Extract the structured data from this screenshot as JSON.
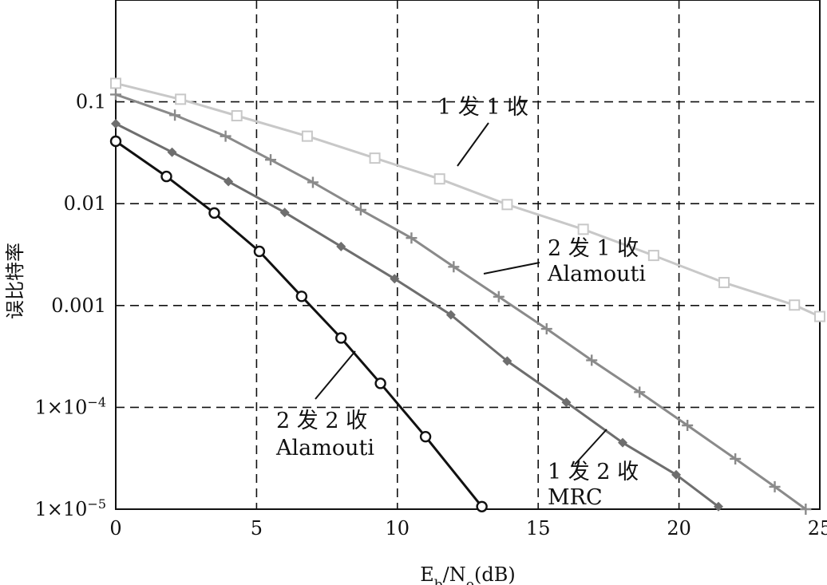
{
  "chart_data": {
    "type": "line",
    "title": "",
    "xlabel": "E_b/N_o(dB)",
    "xlabel_parts": {
      "e": "E",
      "b": "b",
      "slash_n": "/N",
      "o": "o",
      "unit": "(dB)"
    },
    "ylabel": "误比特率",
    "xlim": [
      0,
      25
    ],
    "ylim": [
      1e-05,
      1
    ],
    "yscale": "log",
    "grid": true,
    "x_ticks": [
      0,
      5,
      10,
      15,
      20,
      25
    ],
    "x_tick_labels": [
      "0",
      "5",
      "10",
      "15",
      "20",
      "25"
    ],
    "y_ticks": [
      {
        "value": 0.1,
        "label": "0.1"
      },
      {
        "value": 0.01,
        "label": "0.01"
      },
      {
        "value": 0.001,
        "label": "0.001"
      },
      {
        "value": 0.0001,
        "label": "1×10",
        "exp": "−4"
      },
      {
        "value": 1e-05,
        "label": "1×10",
        "exp": "−5"
      }
    ],
    "series": [
      {
        "name": "1 发 1 收",
        "color": "#c8c8c8",
        "marker": "square",
        "x": [
          0,
          2.3,
          4.3,
          6.8,
          9.2,
          11.5,
          13.9,
          16.6,
          19.1,
          21.6,
          24.1,
          25
        ],
        "y": [
          0.152,
          0.106,
          0.073,
          0.046,
          0.028,
          0.0175,
          0.0098,
          0.0056,
          0.0031,
          0.00168,
          0.00101,
          0.00078
        ]
      },
      {
        "name": "2 发 1 收 Alamouti",
        "color": "#8a8a8a",
        "marker": "plus",
        "x": [
          0,
          2.1,
          3.9,
          5.5,
          7.0,
          8.7,
          10.5,
          12.0,
          13.6,
          15.3,
          16.9,
          18.6,
          20.3,
          22.0,
          23.4,
          24.5
        ],
        "y": [
          0.118,
          0.074,
          0.046,
          0.027,
          0.0162,
          0.0087,
          0.0046,
          0.0024,
          0.00122,
          0.00059,
          0.00029,
          0.000141,
          6.65e-05,
          3.12e-05,
          1.66e-05,
          1e-05
        ]
      },
      {
        "name": "1 发 2 收 MRC",
        "color": "#6e6e6e",
        "marker": "diamond",
        "x": [
          0,
          2.0,
          4.0,
          6.0,
          8.0,
          9.9,
          11.9,
          13.9,
          16.0,
          18.0,
          19.9,
          21.4
        ],
        "y": [
          0.061,
          0.032,
          0.0165,
          0.0082,
          0.0038,
          0.00183,
          0.00081,
          0.000285,
          0.000112,
          4.5e-05,
          2.18e-05,
          1.06e-05
        ]
      },
      {
        "name": "2 发 2 收 Alamouti",
        "color": "#111111",
        "marker": "circle",
        "x": [
          0,
          1.8,
          3.5,
          5.1,
          6.6,
          8.0,
          9.4,
          11.0,
          13.0
        ],
        "y": [
          0.041,
          0.0185,
          0.0081,
          0.0034,
          0.00123,
          0.00048,
          0.000172,
          5.15e-05,
          1.06e-05
        ]
      }
    ],
    "annotations": [
      {
        "lines": [
          "1 发 1 收"
        ]
      },
      {
        "lines": [
          "2 发 1 收",
          "Alamouti"
        ]
      },
      {
        "lines": [
          "1 发 2 收",
          "MRC"
        ]
      },
      {
        "lines": [
          "2 发 2 收",
          "Alamouti"
        ]
      }
    ]
  }
}
